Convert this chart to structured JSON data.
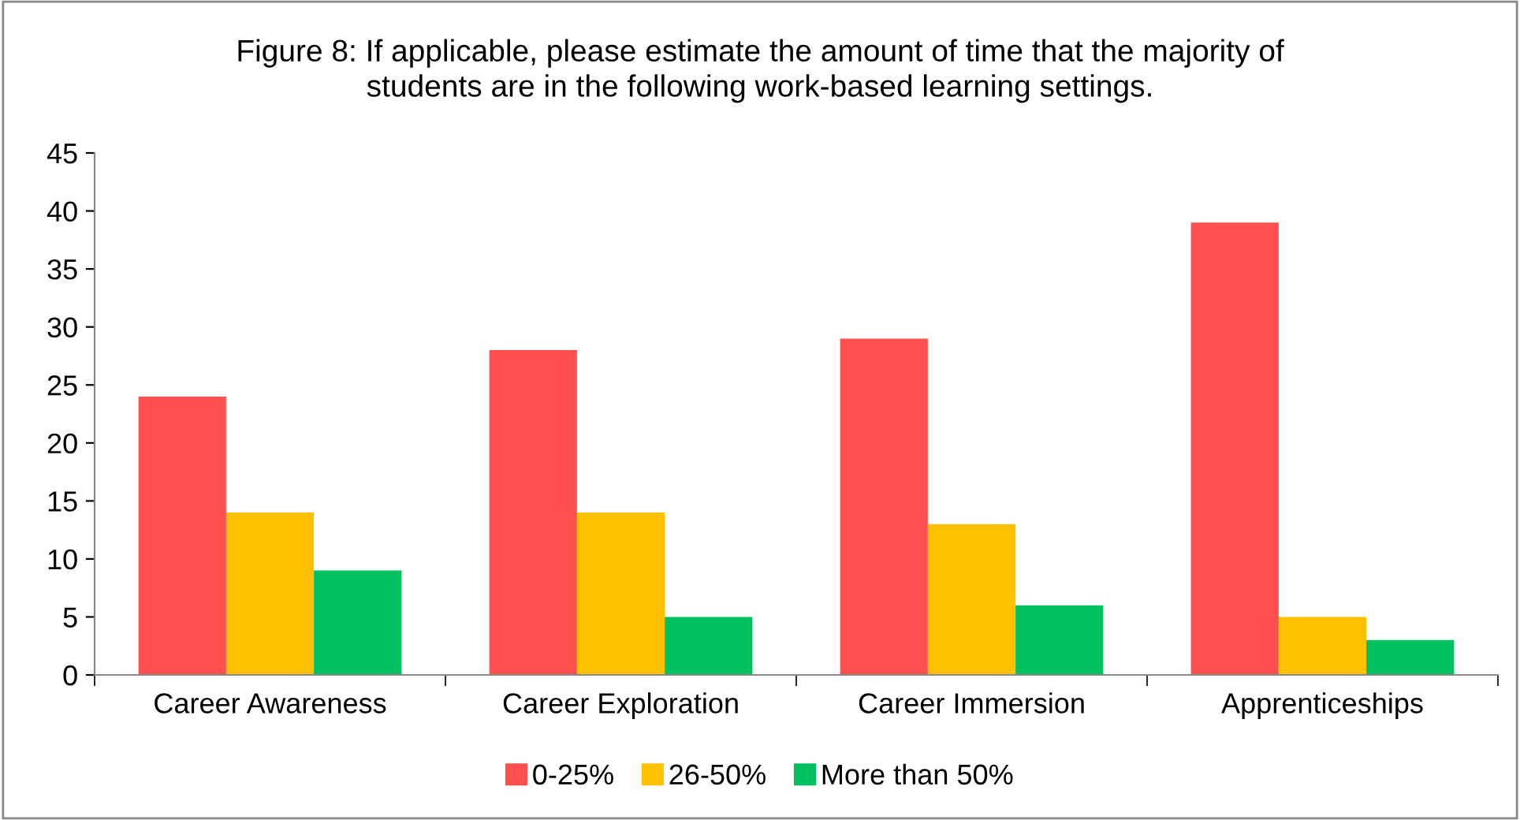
{
  "chart_data": {
    "type": "bar",
    "title": "Figure 8: If applicable, please estimate the amount of time that the majority of\nstudents are in the following work-based learning settings.",
    "categories": [
      "Career Awareness",
      "Career Exploration",
      "Career Immersion",
      "Apprenticeships"
    ],
    "series": [
      {
        "name": "0-25%",
        "color": "#ff5050",
        "values": [
          24,
          28,
          29,
          39
        ]
      },
      {
        "name": "26-50%",
        "color": "#ffc000",
        "values": [
          14,
          14,
          13,
          5
        ]
      },
      {
        "name": "More than 50%",
        "color": "#00c060",
        "values": [
          9,
          5,
          6,
          3
        ]
      }
    ],
    "ylim": [
      0,
      45
    ],
    "yticks": [
      0,
      5,
      10,
      15,
      20,
      25,
      30,
      35,
      40,
      45
    ],
    "grid": false,
    "legend": "bottom"
  }
}
